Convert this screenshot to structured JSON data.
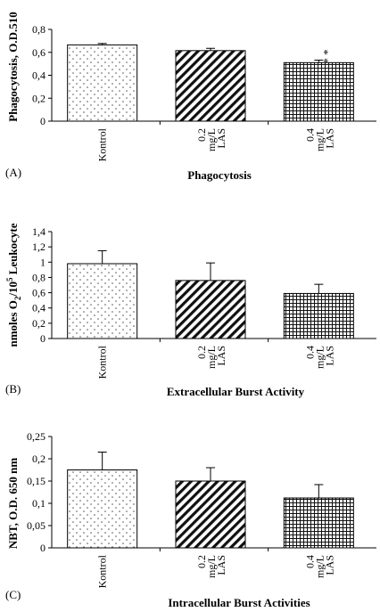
{
  "chart_data": [
    {
      "type": "bar",
      "panel": "(A)",
      "title": "Phagocytosis",
      "ylabel": "Phagocytosis, O.D.510",
      "categories": [
        [
          "Kontrol"
        ],
        [
          "0.2",
          "mg/L",
          "LAS"
        ],
        [
          "0.4",
          "mg/L",
          "LAS"
        ]
      ],
      "values": [
        0.665,
        0.615,
        0.51
      ],
      "errors": [
        0.012,
        0.02,
        0.022
      ],
      "annotations": [
        "",
        "",
        "* *"
      ],
      "patterns": [
        "dots",
        "diagonal",
        "grid"
      ],
      "ylim": [
        0,
        0.8
      ],
      "yticks": [
        "0",
        "0,2",
        "0,4",
        "0,6",
        "0,8"
      ],
      "ytick_values": [
        0,
        0.2,
        0.4,
        0.6,
        0.8
      ],
      "grid": false
    },
    {
      "type": "bar",
      "panel": "(B)",
      "title": "Extracellular Burst Activity",
      "ylabel_main": "nmoles O",
      "ylabel_sub": "2",
      "ylabel_mid": "/10",
      "ylabel_sup": "5",
      "ylabel_end": " Leukocyte",
      "categories": [
        [
          "Kontrol"
        ],
        [
          "0.2",
          "mg/L",
          "LAS"
        ],
        [
          "0.4",
          "mg/L",
          "LAS"
        ]
      ],
      "values": [
        0.98,
        0.76,
        0.59
      ],
      "errors": [
        0.17,
        0.23,
        0.12
      ],
      "annotations": [
        "",
        "",
        ""
      ],
      "patterns": [
        "dots",
        "diagonal",
        "grid"
      ],
      "ylim": [
        0,
        1.4
      ],
      "yticks": [
        "0",
        "0,2",
        "0,4",
        "0,6",
        "0,8",
        "1",
        "1,2",
        "1,4"
      ],
      "ytick_values": [
        0,
        0.2,
        0.4,
        0.6,
        0.8,
        1.0,
        1.2,
        1.4
      ],
      "grid": false
    },
    {
      "type": "bar",
      "panel": "(C)",
      "title": "Intracellular Burst Activities",
      "ylabel": "NBT, O.D. 650 nm",
      "categories": [
        [
          "Kontrol"
        ],
        [
          "0.2",
          "mg/L",
          "LAS"
        ],
        [
          "0.4",
          "mg/L",
          "LAS"
        ]
      ],
      "values": [
        0.175,
        0.15,
        0.112
      ],
      "errors": [
        0.04,
        0.03,
        0.03
      ],
      "annotations": [
        "",
        "",
        ""
      ],
      "patterns": [
        "dots",
        "diagonal",
        "grid"
      ],
      "ylim": [
        0,
        0.25
      ],
      "yticks": [
        "0",
        "0,05",
        "0,1",
        "0,15",
        "0,2",
        "0,25"
      ],
      "ytick_values": [
        0,
        0.05,
        0.1,
        0.15,
        0.2,
        0.25
      ],
      "grid": false
    }
  ]
}
